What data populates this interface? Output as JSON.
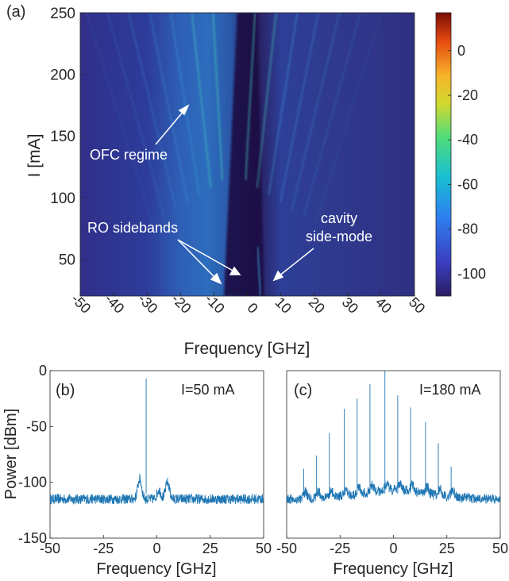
{
  "heatmap": {
    "panel_label": "(a)",
    "xlabel": "Frequency [GHz]",
    "ylabel": "I [mA]",
    "xlim": [
      -50,
      50
    ],
    "ylim": [
      20,
      250
    ],
    "xticks": [
      "-50",
      "-40",
      "-30",
      "-20",
      "-10",
      "0",
      "10",
      "20",
      "30",
      "40",
      "50"
    ],
    "yticks": [
      "250",
      "200",
      "150",
      "100",
      "50"
    ],
    "colorbar_ticks": [
      "0",
      "-20",
      "-40",
      "-60",
      "-80",
      "-100"
    ],
    "colorbar_range": [
      -110,
      17
    ],
    "annotations": {
      "ofc": "OFC regime",
      "ro": "RO sidebands",
      "cavity_1": "cavity",
      "cavity_2": "side-mode"
    }
  },
  "spectrum_b": {
    "panel_label": "(b)",
    "condition": "I=50 mA",
    "xlabel": "Frequency [GHz]",
    "ylabel": "Power [dBm]",
    "xticks": [
      "-50",
      "-25",
      "0",
      "25",
      "50"
    ],
    "yticks": [
      "0",
      "-50",
      "-100",
      "-150"
    ]
  },
  "spectrum_c": {
    "panel_label": "(c)",
    "condition": "I=180 mA",
    "xlabel": "Frequency [GHz]",
    "xticks": [
      "-50",
      "-25",
      "0",
      "25",
      "50"
    ]
  },
  "chart_data": [
    {
      "type": "heatmap",
      "x_range": [
        -50,
        50
      ],
      "y_range": [
        20,
        250
      ],
      "color_scale": "jet",
      "color_range_dBm": [
        -110,
        17
      ],
      "features": [
        {
          "kind": "carrier",
          "x": -4,
          "y_start": 20,
          "y_end": 250
        },
        {
          "kind": "RO sideband",
          "x_at_low_current": [
            -7,
            -1
          ]
        },
        {
          "kind": "cavity side-mode",
          "x": 3,
          "y_start": 20,
          "y_end": 60
        },
        {
          "kind": "comb lines",
          "spacing_GHz": 6.3,
          "y_start": 120,
          "y_end": 250
        }
      ]
    },
    {
      "type": "line",
      "series_label": "I=50 mA",
      "x_range": [
        -50,
        50
      ],
      "y_range": [
        -150,
        0
      ],
      "noise_floor_dBm": -115,
      "peaks": [
        {
          "x": -5,
          "y": -7
        }
      ],
      "bumps": [
        {
          "x": -8,
          "y": -97
        },
        {
          "x": 1,
          "y": -107
        },
        {
          "x": 5,
          "y": -100
        }
      ]
    },
    {
      "type": "line",
      "series_label": "I=180 mA",
      "x_range": [
        -50,
        50
      ],
      "y_range": [
        -150,
        0
      ],
      "noise_floor_dBm": -115,
      "peaks": [
        {
          "x": -42,
          "y": -88
        },
        {
          "x": -36,
          "y": -76
        },
        {
          "x": -30,
          "y": -56
        },
        {
          "x": -23,
          "y": -34
        },
        {
          "x": -17,
          "y": -25
        },
        {
          "x": -11,
          "y": -12
        },
        {
          "x": -4,
          "y": 0
        },
        {
          "x": 2,
          "y": -22
        },
        {
          "x": 8,
          "y": -33
        },
        {
          "x": 15,
          "y": -46
        },
        {
          "x": 21,
          "y": -65
        },
        {
          "x": 27,
          "y": -86
        }
      ]
    }
  ]
}
